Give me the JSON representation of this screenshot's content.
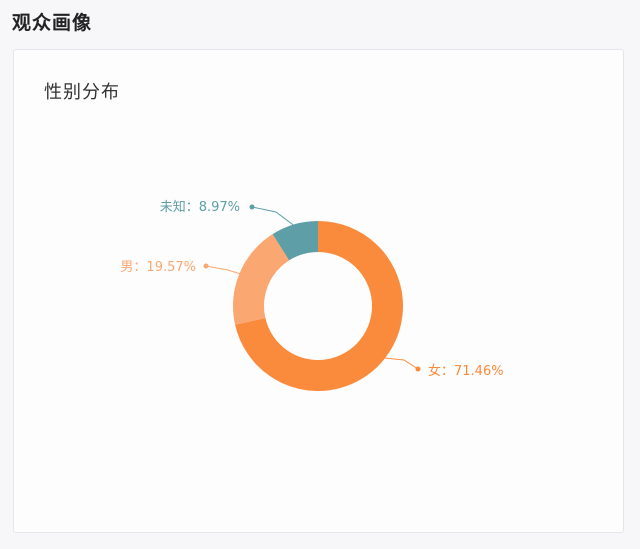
{
  "header": {
    "section_title": "观众画像"
  },
  "card": {
    "title": "性别分布"
  },
  "colors": {
    "female": "#fb8b3c",
    "male": "#fba772",
    "unknown": "#5e9ea6",
    "page_bg": "#f7f7f9",
    "card_bg": "#fdfdfd"
  },
  "chart_data": {
    "type": "pie",
    "donut": true,
    "title": "性别分布",
    "slices": [
      {
        "key": "female",
        "label": "女",
        "value": 71.46,
        "display": "女：71.46%",
        "color": "#fb8b3c"
      },
      {
        "key": "male",
        "label": "男",
        "value": 19.57,
        "display": "男：19.57%",
        "color": "#fba772"
      },
      {
        "key": "unknown",
        "label": "未知",
        "value": 8.97,
        "display": "未知：8.97%",
        "color": "#5e9ea6"
      }
    ],
    "legend": "none"
  }
}
